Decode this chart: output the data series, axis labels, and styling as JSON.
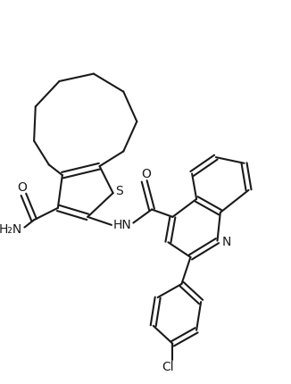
{
  "background_color": "#ffffff",
  "line_color": "#1a1a1a",
  "line_width": 1.5,
  "font_size": 10,
  "figsize": [
    3.26,
    4.31
  ],
  "dpi": 100,
  "xlim": [
    0,
    9.5
  ],
  "ylim": [
    0,
    12.8
  ]
}
